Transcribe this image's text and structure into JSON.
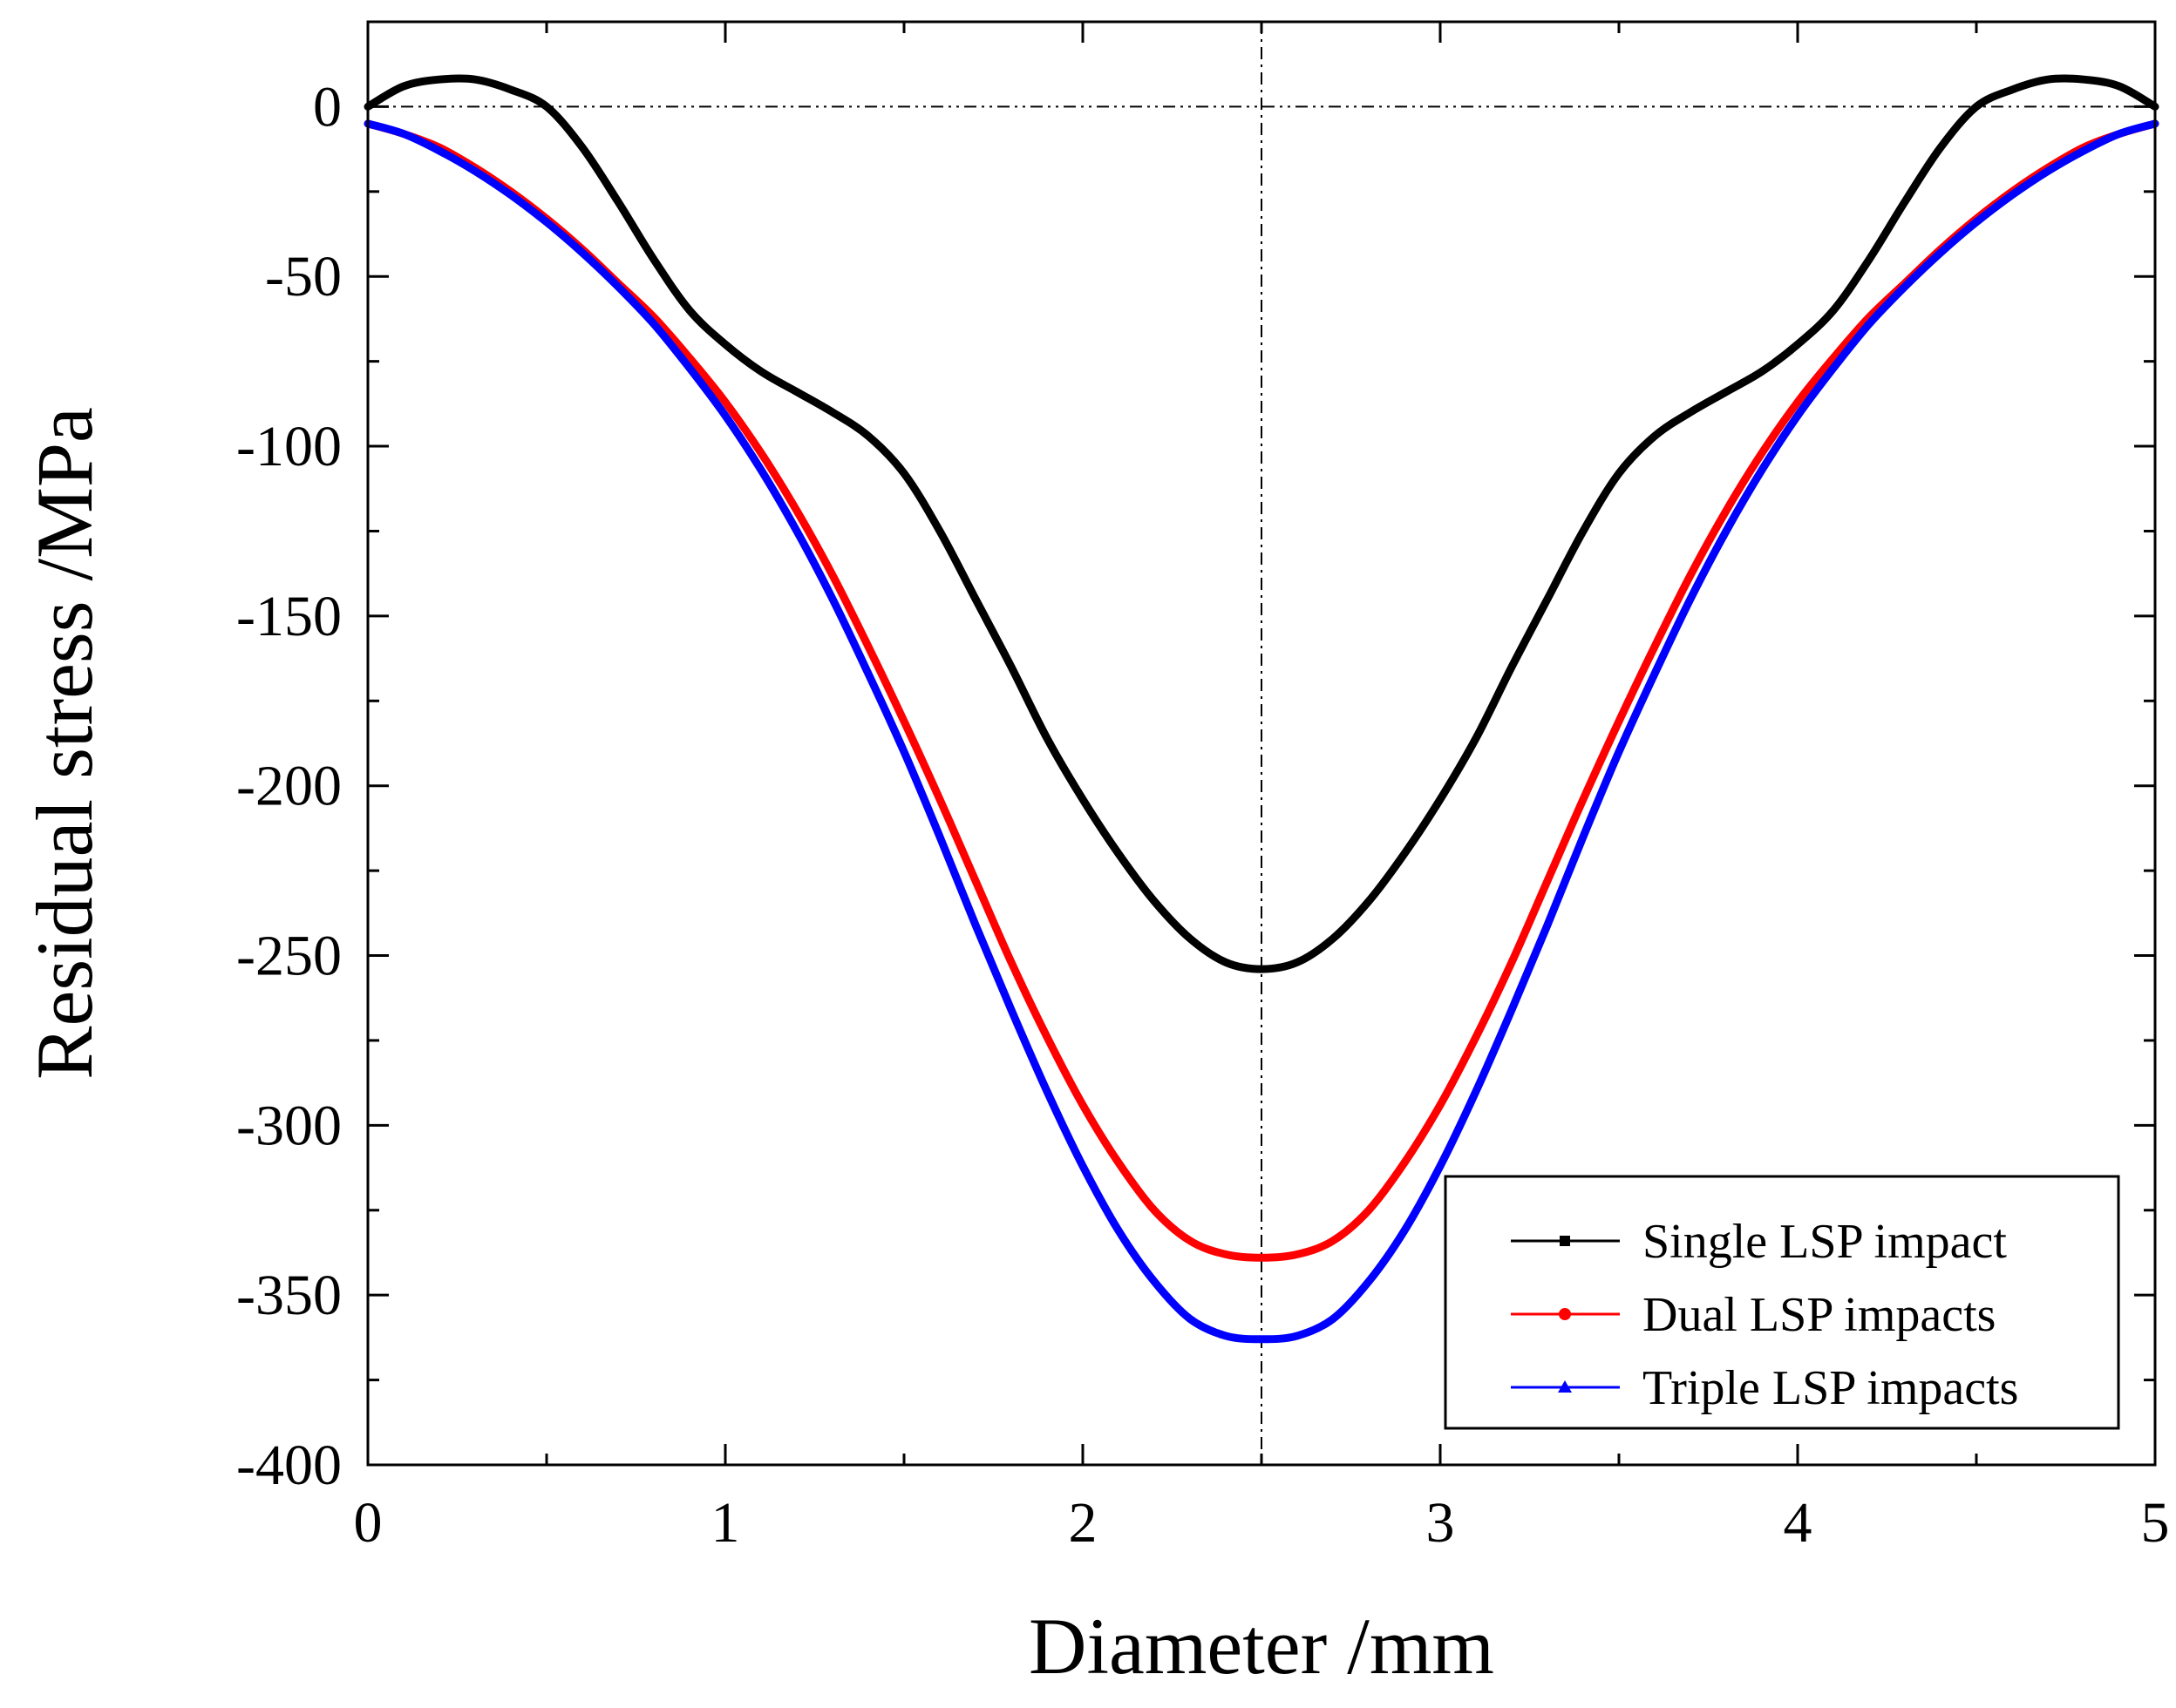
{
  "chart_data": {
    "type": "line",
    "title": "",
    "xlabel": "Diameter /mm",
    "ylabel": "Residual stress /MPa",
    "xlim": [
      0,
      5
    ],
    "ylim": [
      -400,
      25
    ],
    "xticks": [
      0,
      1,
      2,
      3,
      4,
      5
    ],
    "yticks": [
      0,
      -50,
      -100,
      -150,
      -200,
      -250,
      -300,
      -350,
      -400
    ],
    "xtick_labels": [
      "0",
      "1",
      "2",
      "3",
      "4",
      "5"
    ],
    "ytick_labels": [
      "0",
      "-50",
      "-100",
      "-150",
      "-200",
      "-250",
      "-300",
      "-350",
      "-400"
    ],
    "reference_lines": {
      "y": 0,
      "x": 2.5
    },
    "legend_position": "bottom-right",
    "grid": false,
    "series": [
      {
        "name": "Single LSP impact",
        "color": "#000000",
        "marker": "square",
        "x": [
          0,
          0.1,
          0.2,
          0.3,
          0.4,
          0.5,
          0.6,
          0.7,
          0.8,
          0.9,
          1.0,
          1.1,
          1.2,
          1.3,
          1.4,
          1.5,
          1.6,
          1.7,
          1.8,
          1.9,
          2.0,
          2.1,
          2.2,
          2.3,
          2.4,
          2.5,
          2.6,
          2.7,
          2.8,
          2.9,
          3.0,
          3.1,
          3.2,
          3.3,
          3.4,
          3.5,
          3.6,
          3.7,
          3.8,
          3.9,
          4.0,
          4.1,
          4.2,
          4.3,
          4.4,
          4.5,
          4.6,
          4.7,
          4.8,
          4.9,
          5.0
        ],
        "values": [
          0,
          6,
          8,
          8,
          5,
          0,
          -12,
          -28,
          -45,
          -60,
          -70,
          -78,
          -84,
          -90,
          -97,
          -108,
          -125,
          -145,
          -165,
          -186,
          -204,
          -220,
          -234,
          -245,
          -252,
          -254,
          -252,
          -245,
          -234,
          -220,
          -204,
          -186,
          -165,
          -145,
          -125,
          -108,
          -97,
          -90,
          -84,
          -78,
          -70,
          -60,
          -45,
          -28,
          -12,
          0,
          5,
          8,
          8,
          6,
          0
        ]
      },
      {
        "name": "Dual LSP impacts",
        "color": "#ff0000",
        "marker": "circle",
        "x": [
          0,
          0.1,
          0.2,
          0.3,
          0.4,
          0.5,
          0.6,
          0.7,
          0.8,
          0.9,
          1.0,
          1.1,
          1.2,
          1.3,
          1.4,
          1.5,
          1.6,
          1.7,
          1.8,
          1.9,
          2.0,
          2.1,
          2.2,
          2.3,
          2.4,
          2.5,
          2.6,
          2.7,
          2.8,
          2.9,
          3.0,
          3.1,
          3.2,
          3.3,
          3.4,
          3.5,
          3.6,
          3.7,
          3.8,
          3.9,
          4.0,
          4.1,
          4.2,
          4.3,
          4.4,
          4.5,
          4.6,
          4.7,
          4.8,
          4.9,
          5.0
        ],
        "values": [
          -5,
          -8,
          -12,
          -18,
          -25,
          -33,
          -42,
          -52,
          -62,
          -74,
          -87,
          -102,
          -119,
          -138,
          -159,
          -181,
          -204,
          -228,
          -252,
          -274,
          -294,
          -311,
          -325,
          -334,
          -338,
          -339,
          -338,
          -334,
          -325,
          -311,
          -294,
          -274,
          -252,
          -228,
          -204,
          -181,
          -159,
          -138,
          -119,
          -102,
          -87,
          -74,
          -62,
          -52,
          -42,
          -33,
          -25,
          -18,
          -12,
          -8,
          -5
        ]
      },
      {
        "name": "Triple LSP impacts",
        "color": "#0000ff",
        "marker": "triangle",
        "x": [
          0,
          0.1,
          0.2,
          0.3,
          0.4,
          0.5,
          0.6,
          0.7,
          0.8,
          0.9,
          1.0,
          1.1,
          1.2,
          1.3,
          1.4,
          1.5,
          1.6,
          1.7,
          1.8,
          1.9,
          2.0,
          2.1,
          2.2,
          2.3,
          2.4,
          2.5,
          2.6,
          2.7,
          2.8,
          2.9,
          3.0,
          3.1,
          3.2,
          3.3,
          3.4,
          3.5,
          3.6,
          3.7,
          3.8,
          3.9,
          4.0,
          4.1,
          4.2,
          4.3,
          4.4,
          4.5,
          4.6,
          4.7,
          4.8,
          4.9,
          5.0
        ],
        "values": [
          -5,
          -8,
          -13,
          -19,
          -26,
          -34,
          -43,
          -53,
          -64,
          -77,
          -91,
          -107,
          -125,
          -145,
          -167,
          -190,
          -215,
          -241,
          -266,
          -290,
          -312,
          -331,
          -346,
          -357,
          -362,
          -363,
          -362,
          -357,
          -346,
          -331,
          -312,
          -290,
          -266,
          -241,
          -215,
          -190,
          -167,
          -145,
          -125,
          -107,
          -91,
          -77,
          -64,
          -53,
          -43,
          -34,
          -26,
          -19,
          -13,
          -8,
          -5
        ]
      }
    ]
  }
}
